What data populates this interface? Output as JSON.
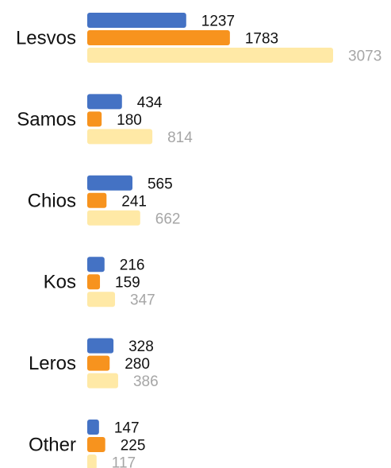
{
  "chart_data": {
    "type": "bar",
    "orientation": "horizontal",
    "title": "",
    "xlabel": "",
    "ylabel": "",
    "grid": false,
    "legend": "none",
    "xlim": [
      0,
      3073
    ],
    "categories": [
      "Lesvos",
      "Samos",
      "Chios",
      "Kos",
      "Leros",
      "Other"
    ],
    "series": [
      {
        "values": [
          1237,
          434,
          565,
          216,
          328,
          147
        ],
        "color": "#4472C4",
        "label_color": "#111111"
      },
      {
        "values": [
          1783,
          180,
          241,
          159,
          280,
          225
        ],
        "color": "#F7931E",
        "label_color": "#111111"
      },
      {
        "values": [
          3073,
          814,
          662,
          347,
          386,
          117
        ],
        "color": "#FFE9A6",
        "label_color": "#A6A6A6"
      }
    ]
  }
}
